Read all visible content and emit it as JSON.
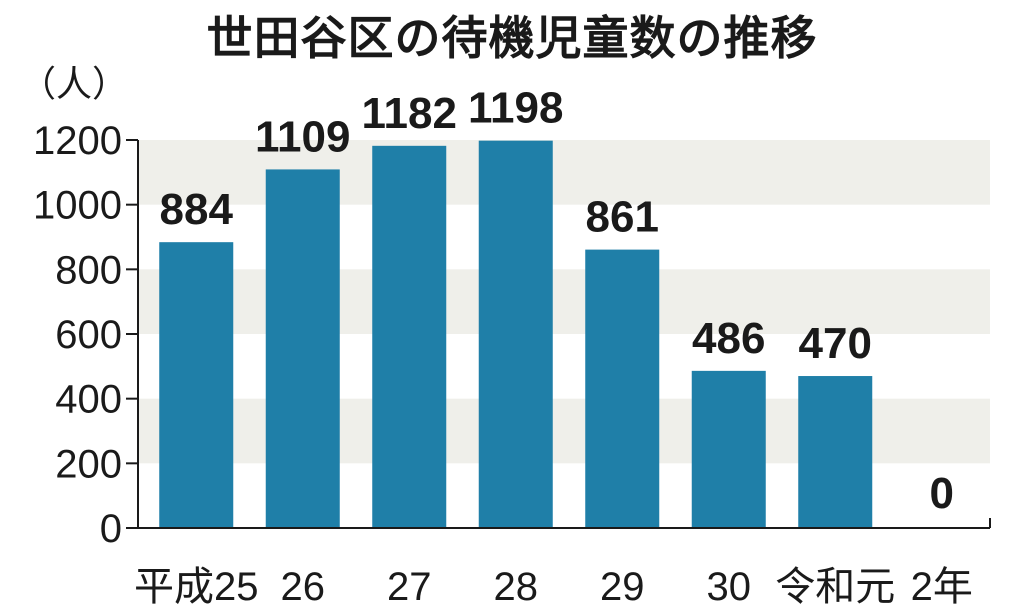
{
  "chart_data": {
    "type": "bar",
    "title": "世田谷区の待機児童数の推移",
    "ylabel": "（人）",
    "categories": [
      "平成25",
      "26",
      "27",
      "28",
      "29",
      "30",
      "令和元",
      "2年"
    ],
    "values": [
      884,
      1109,
      1182,
      1198,
      861,
      486,
      470,
      0
    ],
    "ylim": [
      0,
      1200
    ],
    "yticks": [
      0,
      200,
      400,
      600,
      800,
      1000,
      1200
    ],
    "grid": "alternating horizontal bands",
    "colors": {
      "bar": "#1f7fa8",
      "band": "#efefea",
      "axis": "#1a1a1a"
    }
  }
}
